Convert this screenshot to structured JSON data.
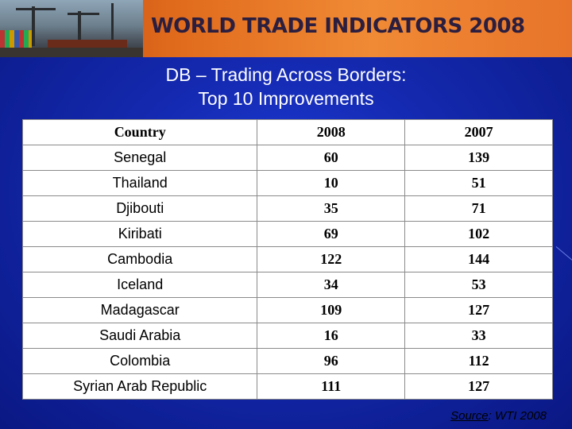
{
  "banner": {
    "title": "WORLD TRADE INDICATORS 2008"
  },
  "slide": {
    "title_line1": "DB – Trading Across Borders:",
    "title_line2": "Top 10 Improvements"
  },
  "table": {
    "headers": [
      "Country",
      "2008",
      "2007"
    ],
    "rows": [
      [
        "Senegal",
        "60",
        "139"
      ],
      [
        "Thailand",
        "10",
        "51"
      ],
      [
        "Djibouti",
        "35",
        "71"
      ],
      [
        "Kiribati",
        "69",
        "102"
      ],
      [
        "Cambodia",
        "122",
        "144"
      ],
      [
        "Iceland",
        "34",
        "53"
      ],
      [
        "Madagascar",
        "109",
        "127"
      ],
      [
        "Saudi Arabia",
        "16",
        "33"
      ],
      [
        "Colombia",
        "96",
        "112"
      ],
      [
        "Syrian Arab Republic",
        "111",
        "127"
      ]
    ]
  },
  "source": {
    "label": "Source",
    "text": ": WTI 2008"
  },
  "colors": {
    "background": "#1429b0",
    "banner": "#e06a1c",
    "title_text": "#ffffff"
  }
}
